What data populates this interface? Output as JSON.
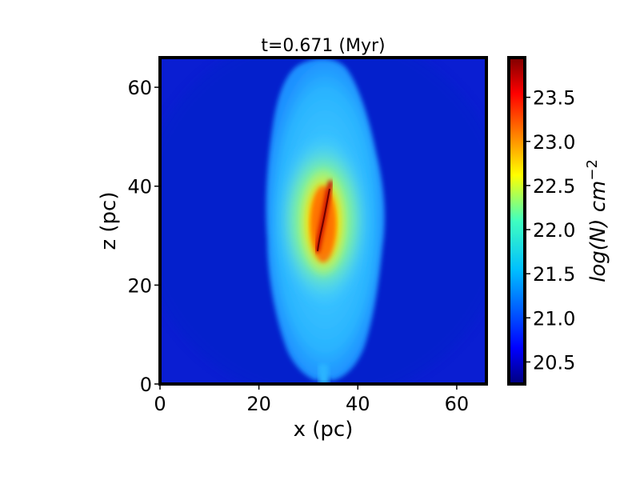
{
  "chart_data": {
    "type": "heatmap",
    "title": "t=0.671 (Myr)",
    "xlabel": "x (pc)",
    "ylabel": "z (pc)",
    "xlim": [
      0,
      66
    ],
    "ylim": [
      0,
      66
    ],
    "xticks": [
      0,
      20,
      40,
      60
    ],
    "yticks": [
      0,
      20,
      40,
      60
    ],
    "colormap": "jet",
    "colorbar": {
      "label": "log(N) cm",
      "label_exponent": "−2",
      "range": [
        20.25,
        23.95
      ],
      "ticks": [
        "20.5",
        "21.0",
        "21.5",
        "22.0",
        "22.5",
        "23.0",
        "23.5"
      ]
    },
    "structure": {
      "background_log_N": 20.4,
      "cloud_center_x": 33,
      "cloud_extent_x": [
        23,
        46
      ],
      "cloud_extent_z": [
        0,
        66
      ],
      "core_center": [
        33,
        33
      ],
      "core_peak_log_N": 23.9,
      "filament_log_N": 23.5,
      "envelope_log_N": 21.3
    }
  }
}
